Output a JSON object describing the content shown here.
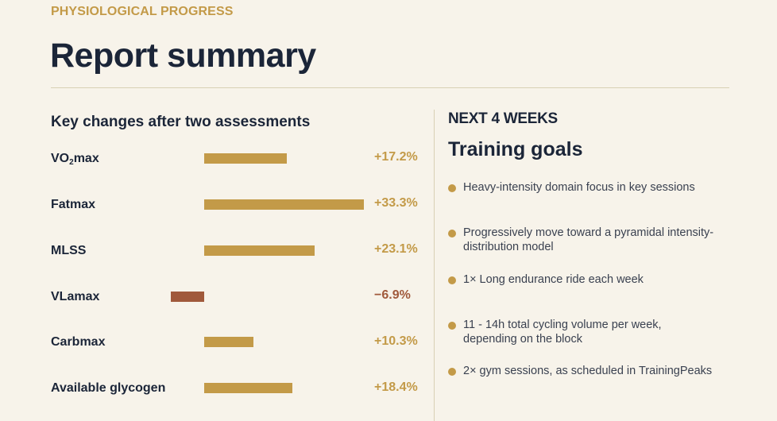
{
  "header": {
    "eyebrow": "PHYSIOLOGICAL PROGRESS",
    "title": "Report summary"
  },
  "chart_data": {
    "type": "bar",
    "title": "Key changes after two assessments",
    "categories": [
      "VO2max",
      "Fatmax",
      "MLSS",
      "VLamax",
      "Carbmax",
      "Available glycogen"
    ],
    "values": [
      17.2,
      33.3,
      23.1,
      -6.9,
      10.3,
      18.4
    ],
    "value_labels": [
      "+17.2%",
      "+33.3%",
      "+23.1%",
      "−6.9%",
      "+10.3%",
      "+18.4%"
    ],
    "unit": "%",
    "orientation": "horizontal",
    "positive_color": "#c39a48",
    "negative_color": "#a0593b",
    "legend": "none",
    "grid": false
  },
  "labels": {
    "vo2_prefix": "VO",
    "vo2_sub": "2",
    "vo2_suffix": "max"
  },
  "goals": {
    "eyebrow": "NEXT 4 WEEKS",
    "title": "Training goals",
    "bullet_color": "#c39a48",
    "items": [
      "Heavy-intensity domain focus in key sessions",
      "Progressively move toward a pyramidal intensity-distribution model",
      "1× Long endurance ride each week",
      "11 - 14h total cycling volume per week, depending on the block",
      "2× gym sessions, as scheduled in TrainingPeaks"
    ]
  }
}
